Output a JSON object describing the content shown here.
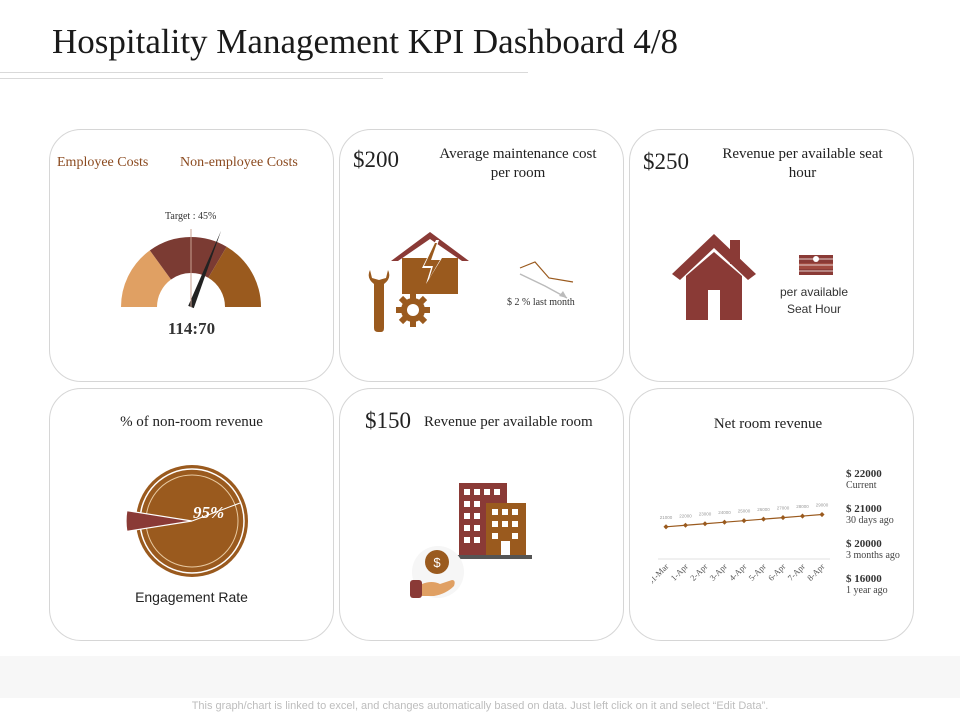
{
  "header": {
    "title": "Hospitality Management KPI Dashboard 4/8"
  },
  "colors": {
    "brown_dark": "#7b3b33",
    "brown_mid": "#9a5a1e",
    "tan": "#e0a063",
    "maroon": "#8a3a36"
  },
  "icons": [
    "wrench-icon",
    "gear-icon",
    "house-lightning-icon",
    "house-icon",
    "money-stack-icon",
    "hotel-building-icon",
    "coin-hand-icon"
  ],
  "card1": {
    "legend": [
      "Employee Costs",
      "Non-employee Costs"
    ],
    "target_label": "Target : 45%",
    "ratio": "114:70"
  },
  "card2": {
    "value": "$200",
    "label_line1": "Average maintenance cost",
    "label_line2": "per room",
    "change": "$ 2 % last month"
  },
  "card3": {
    "value": "$250",
    "label_line1": "Revenue per available seat",
    "label_line2": "hour",
    "sub_line1": "per available",
    "sub_line2": "Seat Hour"
  },
  "card4": {
    "label": "% of non-room revenue",
    "percent": "95%",
    "caption": "Engagement Rate"
  },
  "card5": {
    "value": "$150",
    "label": "Revenue per available room"
  },
  "card6": {
    "label": "Net room revenue",
    "revenues": [
      {
        "value": "$ 22000",
        "label": "Current"
      },
      {
        "value": "$ 21000",
        "label": "30 days ago"
      },
      {
        "value": "$ 20000",
        "label": "3 months ago"
      },
      {
        "value": "$ 16000",
        "label": "1 year ago"
      }
    ]
  },
  "chart_data": [
    {
      "type": "pie",
      "title": "",
      "categories": [
        "Employee Costs",
        "Non-employee Costs"
      ],
      "values": [
        114,
        70
      ],
      "target_percent": 45,
      "legend": "top"
    },
    {
      "type": "pie",
      "title": "% of non-room revenue",
      "values": [
        95,
        5
      ],
      "display_value": "95%"
    },
    {
      "type": "line",
      "title": "Net room revenue",
      "categories": [
        "31-Mar",
        "1-Apr",
        "2-Apr",
        "3-Apr",
        "4-Apr",
        "5-Apr",
        "6-Apr",
        "7-Apr",
        "8-Apr"
      ],
      "values": [
        21000,
        22000,
        23000,
        24000,
        25000,
        26000,
        27000,
        28000,
        29000
      ],
      "ylim": [
        0,
        60000
      ],
      "grid": false
    }
  ],
  "footer": {
    "note": "This graph/chart is linked to excel, and changes automatically based on data. Just left click on it and select “Edit Data”."
  }
}
